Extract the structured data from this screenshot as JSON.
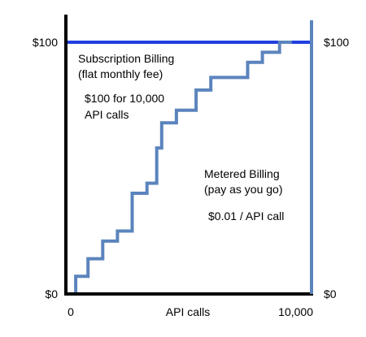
{
  "chart_data": {
    "type": "line",
    "title": "",
    "xlabel": "API calls",
    "ylabel": "",
    "xlim": [
      0,
      10000
    ],
    "ylim": [
      0,
      100
    ],
    "grid": false,
    "legend": "none",
    "x_ticks": [
      {
        "value": 0,
        "label": "0"
      },
      {
        "value": 10000,
        "label": "10,000"
      }
    ],
    "y_ticks_left": [
      {
        "value": 0,
        "label": "$0"
      },
      {
        "value": 100,
        "label": "$100"
      }
    ],
    "y_ticks_right": [
      {
        "value": 0,
        "label": "$0"
      },
      {
        "value": 100,
        "label": "$100"
      }
    ],
    "series": [
      {
        "key": "subscription",
        "color": "#1f3fe0",
        "style": "flat",
        "x": [
          0,
          10000
        ],
        "y": [
          100,
          100
        ]
      },
      {
        "key": "metered",
        "color": "#5b84bd",
        "style": "step",
        "x": [
          200,
          400,
          900,
          1500,
          2100,
          2700,
          3300,
          3700,
          3900,
          4500,
          5300,
          5900,
          6700,
          7400,
          8000,
          8700,
          9200
        ],
        "y": [
          0,
          7,
          14,
          21,
          25,
          40,
          44,
          58,
          68,
          73,
          81,
          86,
          86,
          92,
          96,
          100,
          100
        ]
      }
    ],
    "annotations": [
      {
        "key": "subscription_title",
        "text": "Subscription Billing"
      },
      {
        "key": "subscription_sub",
        "text": "(flat monthly fee)"
      },
      {
        "key": "subscription_price_1",
        "text": "$100 for 10,000"
      },
      {
        "key": "subscription_price_2",
        "text": "API calls"
      },
      {
        "key": "metered_title",
        "text": "Metered Billing"
      },
      {
        "key": "metered_sub",
        "text": "(pay as you go)"
      },
      {
        "key": "metered_price",
        "text": "$0.01 /  API call"
      }
    ],
    "axis_color": "#000000",
    "right_axis_color": "#5b84bd"
  }
}
